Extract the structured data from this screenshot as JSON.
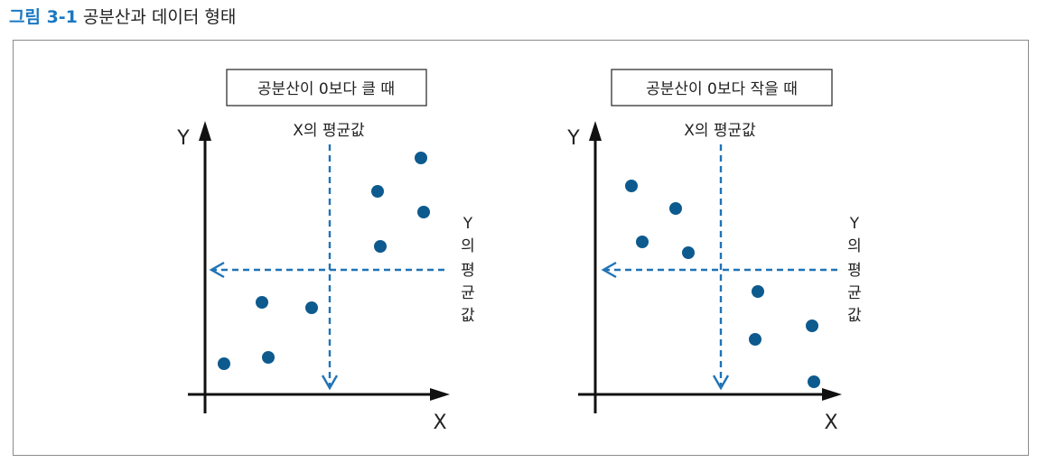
{
  "figure": {
    "number": "그림 3-1",
    "title": "공분산과 데이터 형태"
  },
  "colors": {
    "accent": "#1a78c2",
    "point": "#0d5a8e",
    "dashed": "#1f73b7",
    "axis": "#111111"
  },
  "panels": [
    {
      "caption": "공분산이 0보다 클 때",
      "x_axis_label": "X",
      "y_axis_label": "Y",
      "x_mean_label": "X의 평균값",
      "y_mean_label": [
        "Y",
        "의",
        "평",
        "균",
        "값"
      ]
    },
    {
      "caption": "공분산이 0보다 작을 때",
      "x_axis_label": "X",
      "y_axis_label": "Y",
      "x_mean_label": "X의 평균값",
      "y_mean_label": [
        "Y",
        "의",
        "평",
        "균",
        "값"
      ]
    }
  ]
}
